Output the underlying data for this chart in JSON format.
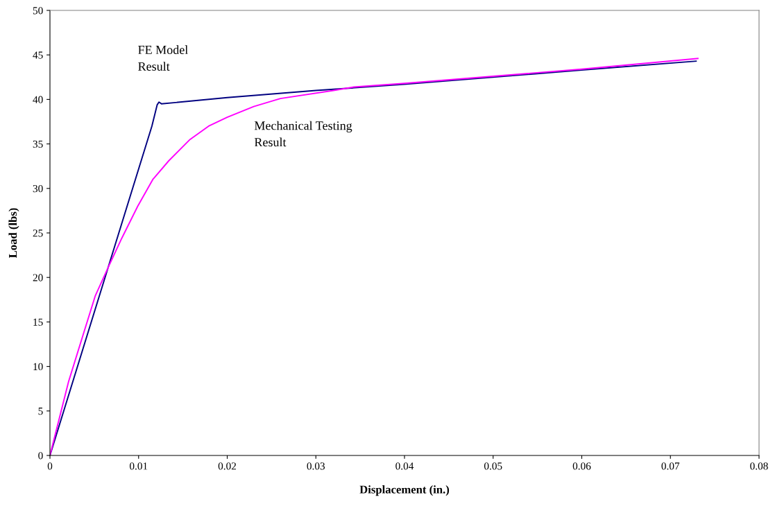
{
  "chart_data": {
    "type": "line",
    "xlabel": "Displacement (in.)",
    "ylabel": "Load (lbs)",
    "xlim": [
      0,
      0.08
    ],
    "xticks": [
      0,
      0.01,
      0.02,
      0.03,
      0.04,
      0.05,
      0.06,
      0.07,
      0.08
    ],
    "ylim": [
      0,
      50
    ],
    "yticks": [
      0,
      5,
      10,
      15,
      20,
      25,
      30,
      35,
      40,
      45,
      50
    ],
    "grid": false,
    "legend": false,
    "marker": "none",
    "line_style": "solid",
    "series": [
      {
        "name": "FE Model Result",
        "color": "#000080",
        "x": [
          0,
          0.0115,
          0.0121,
          0.0123,
          0.0126,
          0.02,
          0.03,
          0.04,
          0.05,
          0.06,
          0.0729
        ],
        "values": [
          0,
          37,
          39.4,
          39.7,
          39.5,
          40.2,
          41.0,
          41.7,
          42.5,
          43.3,
          44.3
        ]
      },
      {
        "name": "Mechanical Testing Result",
        "color": "#ff00ff",
        "x": [
          0,
          0.0021,
          0.0036,
          0.0051,
          0.0066,
          0.0081,
          0.0099,
          0.0116,
          0.0134,
          0.0158,
          0.0179,
          0.02,
          0.023,
          0.026,
          0.032,
          0.0343,
          0.04,
          0.05,
          0.06,
          0.0731
        ],
        "values": [
          0,
          8.3,
          13.1,
          17.9,
          21.2,
          24.4,
          28.0,
          31.0,
          33.1,
          35.5,
          37.0,
          38.0,
          39.2,
          40.1,
          41.0,
          41.4,
          41.8,
          42.6,
          43.4,
          44.6
        ]
      }
    ]
  }
}
